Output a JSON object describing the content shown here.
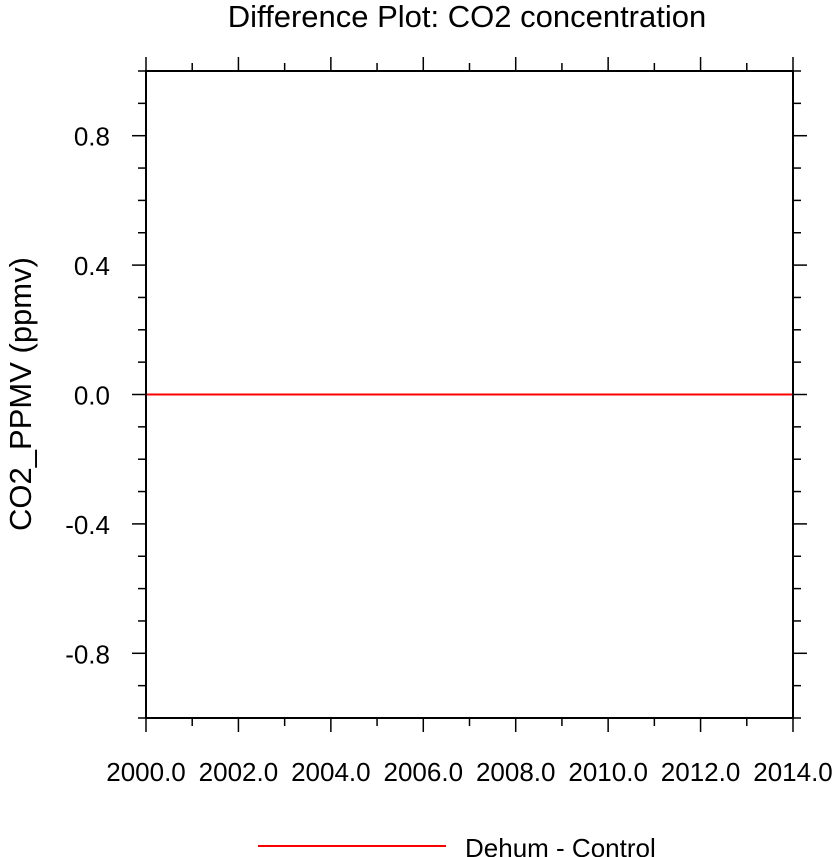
{
  "chart_data": {
    "type": "line",
    "title": "Difference Plot: CO2 concentration",
    "xlabel": "",
    "ylabel": "CO2_PPMV  (ppmv)",
    "xlim": [
      2000.0,
      2014.0
    ],
    "ylim": [
      -1.0,
      1.0
    ],
    "x_ticks": [
      2000.0,
      2002.0,
      2004.0,
      2006.0,
      2008.0,
      2010.0,
      2012.0,
      2014.0
    ],
    "x_tick_labels": [
      "2000.0",
      "2002.0",
      "2004.0",
      "2006.0",
      "2008.0",
      "2010.0",
      "2012.0",
      "2014.0"
    ],
    "y_ticks": [
      0.8,
      0.4,
      0.0,
      -0.4,
      -0.8
    ],
    "y_tick_labels": [
      "0.8",
      "0.4",
      "0.0",
      "-0.4",
      "-0.8"
    ],
    "grid": false,
    "legend_position": "bottom",
    "series": [
      {
        "name": "Dehum - Control",
        "color": "#ff0000",
        "x": [
          2000.0,
          2014.0
        ],
        "y": [
          0.0,
          0.0
        ]
      }
    ]
  }
}
